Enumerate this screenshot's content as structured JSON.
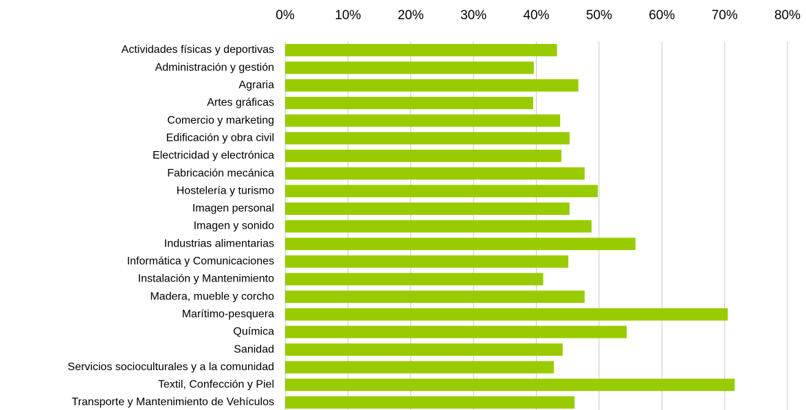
{
  "chart_data": {
    "type": "barh",
    "categories": [
      "Actividades físicas y deportivas",
      "Administración y gestión",
      "Agraria",
      "Artes gráficas",
      "Comercio y marketing",
      "Edificación y obra civil",
      "Electricidad y electrónica",
      "Fabricación mecánica",
      "Hostelería y turismo",
      "Imagen personal",
      "Imagen y sonido",
      "Industrias alimentarias",
      "Informática y Comunicaciones",
      "Instalación y Mantenimiento",
      "Madera, mueble y corcho",
      "Marítimo-pesquera",
      "Química",
      "Sanidad",
      "Servicios socioculturales y a la comunidad",
      "Textil, Confección y Piel",
      "Transporte y Mantenimiento de Vehículos"
    ],
    "values": [
      43.3,
      39.6,
      46.7,
      39.5,
      43.8,
      45.3,
      44.0,
      47.7,
      49.8,
      45.3,
      48.8,
      55.8,
      45.1,
      41.1,
      47.7,
      70.5,
      54.4,
      44.2,
      42.8,
      71.6,
      46.1
    ],
    "color": "#99cc00",
    "xlim": [
      0,
      80
    ],
    "xticks": [
      {
        "value": 0,
        "label": "0%"
      },
      {
        "value": 10,
        "label": "10%"
      },
      {
        "value": 20,
        "label": "20%"
      },
      {
        "value": 30,
        "label": "30%"
      },
      {
        "value": 40,
        "label": "40%"
      },
      {
        "value": 50,
        "label": "50%"
      },
      {
        "value": 60,
        "label": "60%"
      },
      {
        "value": 70,
        "label": "70%"
      },
      {
        "value": 80,
        "label": "80%"
      }
    ],
    "grid": true
  }
}
